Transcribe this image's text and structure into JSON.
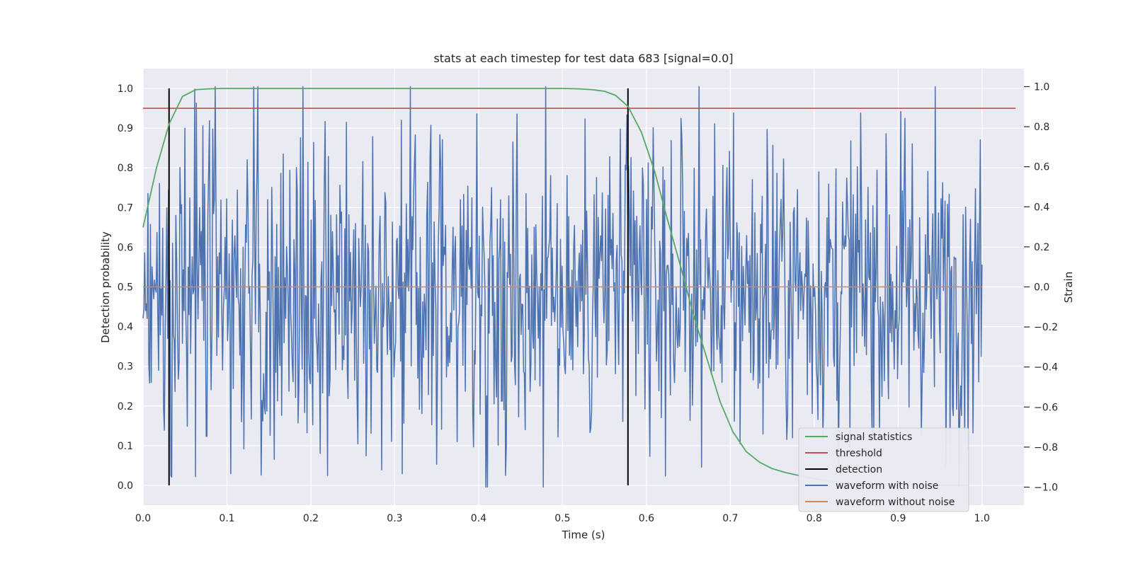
{
  "chart_data": {
    "type": "line",
    "title": "stats at each timestep for test data 683 [signal=0.0]",
    "xlabel": "Time (s)",
    "ylabel": "Detection probability",
    "y2label": "Strain",
    "xlim": [
      0.0,
      1.05
    ],
    "ylim": [
      -0.05,
      1.05
    ],
    "y2lim": [
      -1.09,
      1.09
    ],
    "xticks": [
      "0.0",
      "0.1",
      "0.2",
      "0.3",
      "0.4",
      "0.5",
      "0.6",
      "0.7",
      "0.8",
      "0.9",
      "1.0"
    ],
    "xtick_values": [
      0.0,
      0.1,
      0.2,
      0.3,
      0.4,
      0.5,
      0.6,
      0.7,
      0.8,
      0.9,
      1.0
    ],
    "yticks": [
      "0.0",
      "0.1",
      "0.2",
      "0.3",
      "0.4",
      "0.5",
      "0.6",
      "0.7",
      "0.8",
      "0.9",
      "1.0"
    ],
    "ytick_values": [
      0.0,
      0.1,
      0.2,
      0.3,
      0.4,
      0.5,
      0.6,
      0.7,
      0.8,
      0.9,
      1.0
    ],
    "y2ticks": [
      "−1.0",
      "−0.8",
      "−0.6",
      "−0.4",
      "−0.2",
      "0.0",
      "0.2",
      "0.4",
      "0.6",
      "0.8",
      "1.0"
    ],
    "y2tick_values": [
      -1.0,
      -0.8,
      -0.6,
      -0.4,
      -0.2,
      0.0,
      0.2,
      0.4,
      0.6,
      0.8,
      1.0
    ],
    "grid": true,
    "legend_position": "lower-right",
    "colors": {
      "background": "#eaeaf2",
      "grid": "#ffffff",
      "signal_statistics": "#55a868",
      "threshold": "#c44e52",
      "detection": "#000000",
      "waveform_with_noise": "#4c72b0",
      "waveform_without_noise": "#dd8452"
    },
    "series": [
      {
        "name": "signal statistics",
        "axis": "left",
        "x": [
          0.0,
          0.016,
          0.031,
          0.047,
          0.063,
          0.078,
          0.094,
          0.11,
          0.2,
          0.3,
          0.4,
          0.5,
          0.52,
          0.535,
          0.55,
          0.563,
          0.578,
          0.594,
          0.61,
          0.625,
          0.641,
          0.656,
          0.672,
          0.688,
          0.703,
          0.719,
          0.735,
          0.75,
          0.766,
          0.781,
          0.797,
          0.813,
          0.828,
          0.844,
          0.86,
          0.875,
          0.9,
          0.95,
          0.984
        ],
        "y": [
          0.65,
          0.8,
          0.91,
          0.98,
          0.997,
          0.999,
          1.0,
          1.0,
          1.0,
          1.0,
          1.0,
          1.0,
          0.999,
          0.997,
          0.993,
          0.983,
          0.955,
          0.89,
          0.79,
          0.67,
          0.55,
          0.43,
          0.32,
          0.21,
          0.135,
          0.085,
          0.058,
          0.042,
          0.032,
          0.025,
          0.018,
          0.012,
          0.008,
          0.005,
          0.003,
          0.002,
          0.001,
          0.0,
          0.0
        ]
      },
      {
        "name": "threshold",
        "axis": "left",
        "x": [
          0.0,
          1.04
        ],
        "y": [
          0.95,
          0.95
        ]
      },
      {
        "name": "detection",
        "axis": "left",
        "x_positions": [
          0.031,
          0.578
        ],
        "y_range": [
          0.0,
          1.0
        ]
      },
      {
        "name": "waveform with noise",
        "axis": "right",
        "x_range": [
          0.0,
          1.0
        ],
        "n_points": 1024,
        "y_range_observed": [
          -1.0,
          1.0
        ],
        "description_of_values": "dense noise samples spanning roughly −1.0 to 1.0 strain"
      },
      {
        "name": "waveform without noise",
        "axis": "right",
        "x": [
          0.0,
          1.0
        ],
        "y": [
          0.0,
          0.0
        ]
      }
    ],
    "legend": [
      "signal statistics",
      "threshold",
      "detection",
      "waveform with noise",
      "waveform without noise"
    ]
  }
}
